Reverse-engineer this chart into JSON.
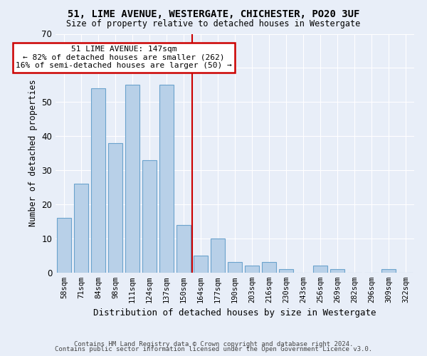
{
  "title1": "51, LIME AVENUE, WESTERGATE, CHICHESTER, PO20 3UF",
  "title2": "Size of property relative to detached houses in Westergate",
  "xlabel": "Distribution of detached houses by size in Westergate",
  "ylabel": "Number of detached properties",
  "categories": [
    "58sqm",
    "71sqm",
    "84sqm",
    "98sqm",
    "111sqm",
    "124sqm",
    "137sqm",
    "150sqm",
    "164sqm",
    "177sqm",
    "190sqm",
    "203sqm",
    "216sqm",
    "230sqm",
    "243sqm",
    "256sqm",
    "269sqm",
    "282sqm",
    "296sqm",
    "309sqm",
    "322sqm"
  ],
  "values": [
    16,
    26,
    54,
    38,
    55,
    33,
    55,
    14,
    5,
    10,
    3,
    2,
    3,
    1,
    0,
    2,
    1,
    0,
    0,
    1,
    0
  ],
  "bar_color": "#b8d0e8",
  "bar_edge_color": "#6ba3cd",
  "annotation_text": "51 LIME AVENUE: 147sqm\n← 82% of detached houses are smaller (262)\n16% of semi-detached houses are larger (50) →",
  "annotation_box_color": "#ffffff",
  "annotation_box_edge_color": "#cc0000",
  "vline_color": "#cc0000",
  "vline_x": 7.5,
  "background_color": "#e8eef8",
  "plot_bg_color": "#e8eef8",
  "grid_color": "#ffffff",
  "ylim": [
    0,
    70
  ],
  "yticks": [
    0,
    10,
    20,
    30,
    40,
    50,
    60,
    70
  ],
  "footer1": "Contains HM Land Registry data © Crown copyright and database right 2024.",
  "footer2": "Contains public sector information licensed under the Open Government Licence v3.0."
}
